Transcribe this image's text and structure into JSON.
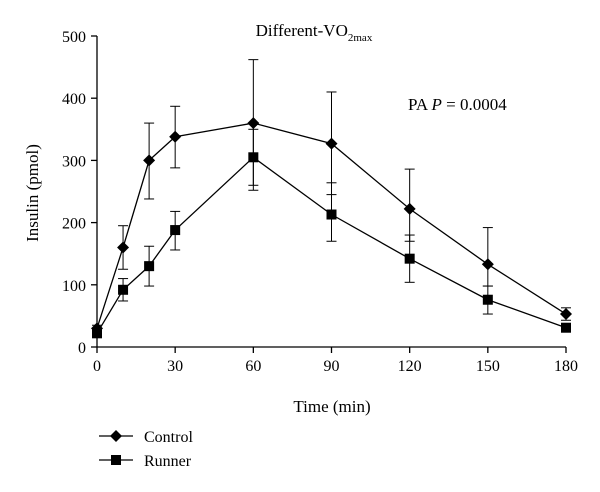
{
  "chart_data": {
    "type": "line",
    "title_base": "Different-VO",
    "title_sub": "2max",
    "annotation_prefix": "PA ",
    "annotation_italic": "P",
    "annotation_value": " = 0.0004",
    "xlabel": "Time (min)",
    "ylabel": "Insulin (pmol)",
    "xlim": [
      0,
      180
    ],
    "ylim": [
      0,
      500
    ],
    "xticks": [
      0,
      30,
      60,
      90,
      120,
      150,
      180
    ],
    "yticks": [
      0,
      100,
      200,
      300,
      400,
      500
    ],
    "x": [
      0,
      10,
      20,
      30,
      60,
      90,
      120,
      150,
      180
    ],
    "series": [
      {
        "name": "Control",
        "marker": "diamond",
        "values": [
          30,
          160,
          300,
          338,
          360,
          327,
          222,
          133,
          53
        ],
        "err_upper": [
          35,
          195,
          360,
          387,
          462,
          410,
          286,
          192,
          63
        ],
        "err_lower": [
          25,
          125,
          238,
          288,
          260,
          245,
          170,
          98,
          43
        ]
      },
      {
        "name": "Runner",
        "marker": "square",
        "values": [
          22,
          92,
          130,
          188,
          305,
          213,
          142,
          76,
          31
        ],
        "err_upper": [
          27,
          110,
          162,
          218,
          350,
          264,
          180,
          98,
          36
        ],
        "err_lower": [
          17,
          74,
          98,
          156,
          252,
          170,
          104,
          53,
          26
        ]
      }
    ],
    "legend_position": "bottom-left",
    "grid": false,
    "color": "#000000"
  }
}
